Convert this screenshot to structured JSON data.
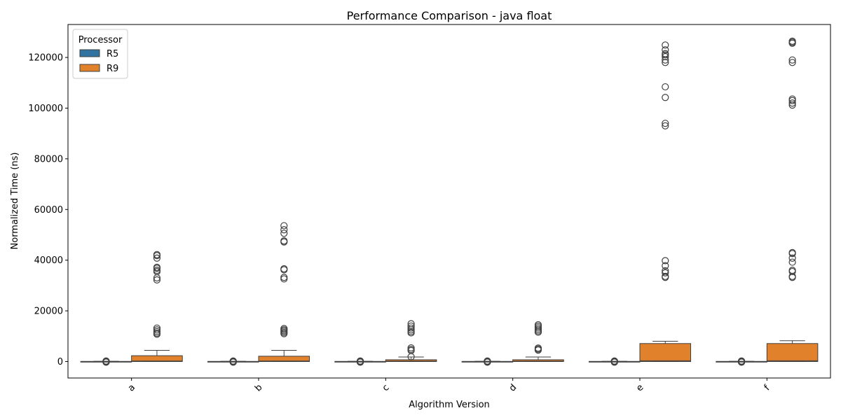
{
  "chart_data": {
    "type": "boxplot",
    "title": "Performance Comparison - java float",
    "xlabel": "Algorithm Version",
    "ylabel": "Normalized Time (ns)",
    "ylim": [
      -6500,
      133000
    ],
    "yticks": [
      0,
      20000,
      40000,
      60000,
      80000,
      100000,
      120000
    ],
    "categories": [
      "a",
      "b",
      "c",
      "d",
      "e",
      "f"
    ],
    "legend": {
      "title": "Processor",
      "position": "top-left"
    },
    "colors": {
      "R5": "#3274a1",
      "R9": "#e1812c",
      "edge": "#3f3f3f"
    },
    "series": [
      {
        "name": "R5",
        "boxes": [
          {
            "q1": 0,
            "median": 0,
            "q3": 50,
            "whisker_low": 0,
            "whisker_high": 100,
            "outliers": [
              -250,
              -100,
              0,
              100,
              200
            ]
          },
          {
            "q1": 0,
            "median": 0,
            "q3": 50,
            "whisker_low": 0,
            "whisker_high": 100,
            "outliers": [
              -250,
              -100,
              0,
              100,
              200
            ]
          },
          {
            "q1": 0,
            "median": 0,
            "q3": 50,
            "whisker_low": 0,
            "whisker_high": 100,
            "outliers": [
              -250,
              -100,
              0,
              100,
              200
            ]
          },
          {
            "q1": 0,
            "median": 0,
            "q3": 50,
            "whisker_low": 0,
            "whisker_high": 100,
            "outliers": [
              -250,
              -100,
              0,
              100,
              200
            ]
          },
          {
            "q1": 0,
            "median": 0,
            "q3": 50,
            "whisker_low": 0,
            "whisker_high": 100,
            "outliers": [
              -250,
              -100,
              0,
              100,
              200
            ]
          },
          {
            "q1": 0,
            "median": 0,
            "q3": 50,
            "whisker_low": 0,
            "whisker_high": 100,
            "outliers": [
              -250,
              -100,
              0,
              100,
              200
            ]
          }
        ]
      },
      {
        "name": "R9",
        "boxes": [
          {
            "q1": 0,
            "median": 200,
            "q3": 2300,
            "whisker_low": 0,
            "whisker_high": 4400,
            "outliers": [
              10800,
              11200,
              11800,
              12500,
              13200,
              32200,
              33000,
              35500,
              36000,
              36800,
              37200,
              40800,
              41800,
              42200
            ]
          },
          {
            "q1": 0,
            "median": 200,
            "q3": 2100,
            "whisker_low": 0,
            "whisker_high": 4400,
            "outliers": [
              11000,
              11500,
              12000,
              12500,
              13000,
              32600,
              33200,
              36200,
              36600,
              47200,
              47600,
              50600,
              52000,
              53600
            ]
          },
          {
            "q1": 0,
            "median": 150,
            "q3": 700,
            "whisker_low": 0,
            "whisker_high": 1800,
            "outliers": [
              1900,
              4300,
              4800,
              5400,
              11300,
              11800,
              12500,
              13200,
              14000,
              14900
            ]
          },
          {
            "q1": 0,
            "median": 150,
            "q3": 700,
            "whisker_low": 0,
            "whisker_high": 1800,
            "outliers": [
              4500,
              4900,
              5300,
              11600,
              12100,
              12700,
              13300,
              13900,
              14500
            ]
          },
          {
            "q1": 0,
            "median": 300,
            "q3": 7100,
            "whisker_low": 0,
            "whisker_high": 8000,
            "outliers": [
              33200,
              33600,
              35000,
              35800,
              37800,
              39800,
              93000,
              94000,
              104200,
              108400,
              118000,
              119000,
              120300,
              121000,
              121500,
              123000,
              124900
            ]
          },
          {
            "q1": 0,
            "median": 300,
            "q3": 7100,
            "whisker_low": 0,
            "whisker_high": 8200,
            "outliers": [
              33200,
              33600,
              35500,
              36000,
              39200,
              40800,
              42600,
              43000,
              101200,
              102000,
              103000,
              103600,
              118000,
              119000,
              125600,
              126000,
              126400
            ]
          }
        ]
      }
    ]
  }
}
